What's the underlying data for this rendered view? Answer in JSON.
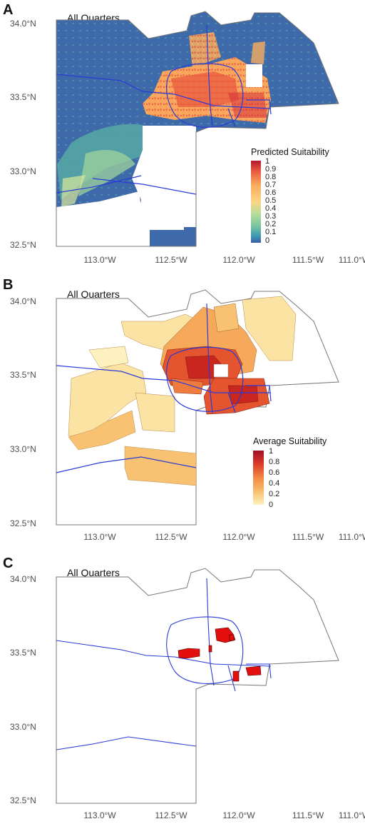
{
  "panels": [
    {
      "letter": "A",
      "title": "All Quarters",
      "lat_ticks": [
        "34.0°N",
        "33.5°N",
        "33.0°N",
        "32.5°N"
      ],
      "lon_ticks": [
        "113.0°W",
        "112.5°W",
        "112.0°W",
        "111.5°W",
        "111.0°W"
      ],
      "legend": {
        "title": "Predicted Suitability",
        "labels": [
          "1",
          "0.9",
          "0.8",
          "0.7",
          "0.6",
          "0.5",
          "0.4",
          "0.3",
          "0.2",
          "0.1",
          "0"
        ],
        "colors": [
          "#b2182b",
          "#d6303a",
          "#e8553f",
          "#f17f4a",
          "#f9ac5e",
          "#fdd486",
          "#e8eba0",
          "#b7dd9a",
          "#77c4a1",
          "#3f96b3",
          "#3b5ea8"
        ]
      }
    },
    {
      "letter": "B",
      "title": "All Quarters",
      "lat_ticks": [
        "34.0°N",
        "33.5°N",
        "33.0°N",
        "32.5°N"
      ],
      "lon_ticks": [
        "113.0°W",
        "112.5°W",
        "112.0°W",
        "111.5°W",
        "111.0°W"
      ],
      "legend": {
        "title": "Average Suitability",
        "labels": [
          "1",
          "0.8",
          "0.6",
          "0.4",
          "0.2",
          "0"
        ],
        "colors": [
          "#9e0f26",
          "#dd3b29",
          "#f28a45",
          "#f8be6e",
          "#fbdf9a",
          "#fdf3bf"
        ]
      }
    },
    {
      "letter": "C",
      "title": "All Quarters",
      "lat_ticks": [
        "34.0°N",
        "33.5°N",
        "33.0°N",
        "32.5°N"
      ],
      "lon_ticks": [
        "113.0°W",
        "112.5°W",
        "112.0°W",
        "111.5°W",
        "111.0°W"
      ]
    }
  ],
  "colors": {
    "boundary": "#777777",
    "roads": "#2a3bd6",
    "hotspot": "#e30f0f",
    "background": "#ffffff"
  }
}
